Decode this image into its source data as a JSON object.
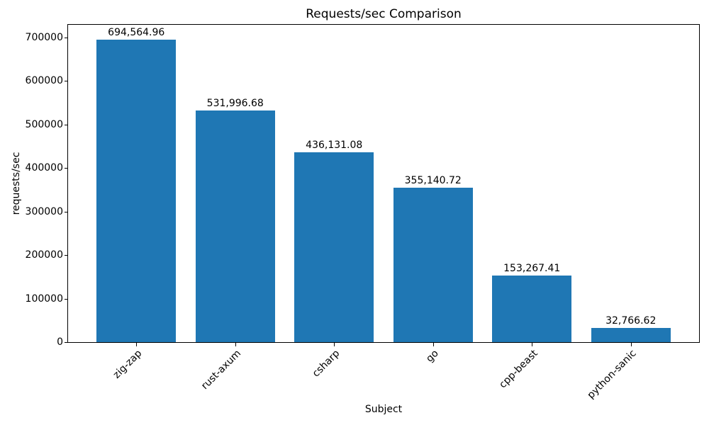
{
  "chart_data": {
    "type": "bar",
    "title": "Requests/sec Comparison",
    "xlabel": "Subject",
    "ylabel": "requests/sec",
    "categories": [
      "zig-zap",
      "rust-axum",
      "csharp",
      "go",
      "cpp-beast",
      "python-sanic"
    ],
    "values": [
      694564.96,
      531996.68,
      436131.08,
      355140.72,
      153267.41,
      32766.62
    ],
    "value_labels": [
      "694,564.96",
      "531,996.68",
      "436,131.08",
      "355,140.72",
      "153,267.41",
      "32,766.62"
    ],
    "yticks": [
      0,
      100000,
      200000,
      300000,
      400000,
      500000,
      600000,
      700000
    ],
    "ytick_labels": [
      "0",
      "100000",
      "200000",
      "300000",
      "400000",
      "500000",
      "600000",
      "700000"
    ],
    "ylim": [
      0,
      729293
    ],
    "bar_color": "#1f77b4",
    "bar_width_fraction": 0.8,
    "x_margin_fraction": 0.05,
    "x_tick_rotation_deg": 45,
    "grid": false,
    "legend_position": "none"
  }
}
